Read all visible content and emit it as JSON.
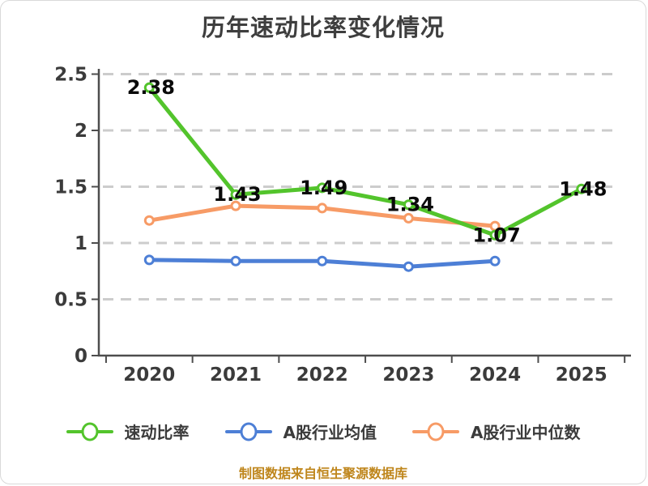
{
  "title": "历年速动比率变化情况",
  "footer": {
    "credit": "制图数据来自恒生聚源数据库",
    "color": "#bf861c"
  },
  "chart_data": {
    "type": "line",
    "title": "历年速动比率变化情况",
    "categories": [
      "2020",
      "2021",
      "2022",
      "2023",
      "2024",
      "2025"
    ],
    "series": [
      {
        "name": "速动比率",
        "color": "#53c42c",
        "values": [
          2.38,
          1.43,
          1.49,
          1.34,
          1.07,
          1.48
        ],
        "labeled": true
      },
      {
        "name": "A股行业均值",
        "color": "#4d7fd6",
        "values": [
          0.85,
          0.84,
          0.84,
          0.79,
          0.84,
          null
        ],
        "labeled": false
      },
      {
        "name": "A股行业中位数",
        "color": "#f79b66",
        "values": [
          1.2,
          1.33,
          1.31,
          1.22,
          1.15,
          null
        ],
        "labeled": false
      }
    ],
    "xlabel": "",
    "ylabel": "",
    "ylim": [
      0,
      2.5
    ],
    "yticks": [
      0,
      0.5,
      1,
      1.5,
      2,
      2.5
    ],
    "grid": "horizontal-dashed",
    "grid_color": "#cccccc",
    "axis_color": "#4d4d4d",
    "legend_position": "bottom"
  }
}
